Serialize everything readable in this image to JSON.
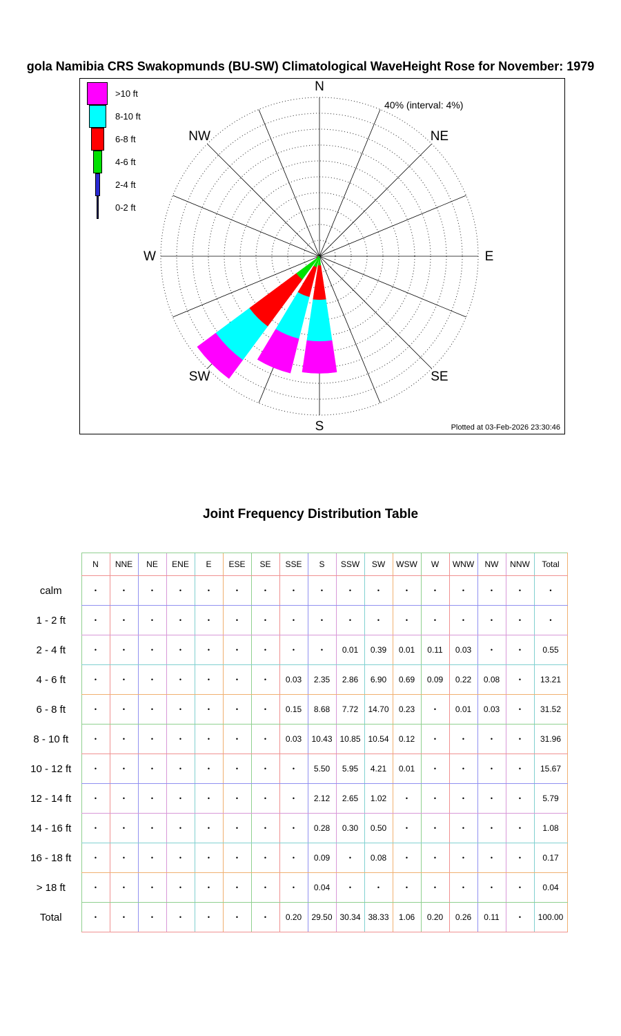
{
  "page": {
    "title": "gola Namibia CRS Swakopmunds (BU-SW) Climatological WaveHeight Rose for November: 1979"
  },
  "rose": {
    "radial_label": "40% (interval: 4%)",
    "plotted_at": "Plotted at 03-Feb-2026 23:30:46",
    "compass_labels": [
      "N",
      "NE",
      "E",
      "SE",
      "S",
      "SW",
      "W",
      "NW"
    ],
    "legend": [
      {
        "label": ">10 ft",
        "color": "#ff00ff",
        "width": 30
      },
      {
        "label": "8-10 ft",
        "color": "#00ffff",
        "width": 25
      },
      {
        "label": "6-8 ft",
        "color": "#ff0000",
        "width": 19
      },
      {
        "label": "4-6 ft",
        "color": "#00e000",
        "width": 13
      },
      {
        "label": "2-4 ft",
        "color": "#2a2ad4",
        "width": 7
      },
      {
        "label": "0-2 ft",
        "color": "#000066",
        "width": 3
      }
    ]
  },
  "chart_data": {
    "type": "wind_rose",
    "title": "Climatological WaveHeight Rose for November: 1979",
    "units": "percent of observations",
    "max_radius_percent": 40,
    "ring_interval_percent": 4,
    "directions": [
      "N",
      "NNE",
      "NE",
      "ENE",
      "E",
      "ESE",
      "SE",
      "SSE",
      "S",
      "SSW",
      "SW",
      "WSW",
      "W",
      "WNW",
      "NW",
      "NNW"
    ],
    "series": [
      {
        "name": "0-2 ft",
        "color": "#000066",
        "values": [
          0,
          0,
          0,
          0,
          0,
          0,
          0,
          0,
          0,
          0,
          0,
          0,
          0,
          0,
          0,
          0
        ]
      },
      {
        "name": "2-4 ft",
        "color": "#2a2ad4",
        "values": [
          0,
          0,
          0,
          0,
          0,
          0,
          0,
          0,
          0,
          0.01,
          0.39,
          0.01,
          0.11,
          0.03,
          0,
          0
        ]
      },
      {
        "name": "4-6 ft",
        "color": "#00e000",
        "values": [
          0,
          0,
          0,
          0,
          0,
          0,
          0,
          0.03,
          2.35,
          2.86,
          6.9,
          0.69,
          0.09,
          0.22,
          0.08,
          0
        ]
      },
      {
        "name": "6-8 ft",
        "color": "#ff0000",
        "values": [
          0,
          0,
          0,
          0,
          0,
          0,
          0,
          0.15,
          8.68,
          7.72,
          14.7,
          0.23,
          0,
          0.01,
          0.03,
          0
        ]
      },
      {
        "name": "8-10 ft",
        "color": "#00ffff",
        "values": [
          0,
          0,
          0,
          0,
          0,
          0,
          0,
          0.03,
          10.43,
          10.85,
          10.54,
          0.12,
          0,
          0,
          0,
          0
        ]
      },
      {
        "name": ">10 ft",
        "color": "#ff00ff",
        "values": [
          0,
          0,
          0,
          0,
          0,
          0,
          0,
          0,
          8.03,
          8.9,
          5.81,
          0.01,
          0,
          0,
          0,
          0
        ]
      }
    ]
  },
  "table": {
    "title": "Joint Frequency Distribution Table",
    "columns": [
      "N",
      "NNE",
      "NE",
      "ENE",
      "E",
      "ESE",
      "SE",
      "SSE",
      "S",
      "SSW",
      "SW",
      "WSW",
      "W",
      "WNW",
      "NW",
      "NNW",
      "Total"
    ],
    "rows": [
      {
        "label": "calm",
        "values": [
          ".",
          ".",
          ".",
          ".",
          ".",
          ".",
          ".",
          ".",
          ".",
          ".",
          ".",
          ".",
          ".",
          ".",
          ".",
          ".",
          "."
        ]
      },
      {
        "label": "1 - 2  ft",
        "values": [
          ".",
          ".",
          ".",
          ".",
          ".",
          ".",
          ".",
          ".",
          ".",
          ".",
          ".",
          ".",
          ".",
          ".",
          ".",
          ".",
          "."
        ]
      },
      {
        "label": "2 - 4  ft",
        "values": [
          ".",
          ".",
          ".",
          ".",
          ".",
          ".",
          ".",
          ".",
          ".",
          "0.01",
          "0.39",
          "0.01",
          "0.11",
          "0.03",
          ".",
          ".",
          "0.55"
        ]
      },
      {
        "label": "4 - 6  ft",
        "values": [
          ".",
          ".",
          ".",
          ".",
          ".",
          ".",
          ".",
          "0.03",
          "2.35",
          "2.86",
          "6.90",
          "0.69",
          "0.09",
          "0.22",
          "0.08",
          ".",
          "13.21"
        ]
      },
      {
        "label": "6 - 8  ft",
        "values": [
          ".",
          ".",
          ".",
          ".",
          ".",
          ".",
          ".",
          "0.15",
          "8.68",
          "7.72",
          "14.70",
          "0.23",
          ".",
          "0.01",
          "0.03",
          ".",
          "31.52"
        ]
      },
      {
        "label": "8 - 10 ft",
        "values": [
          ".",
          ".",
          ".",
          ".",
          ".",
          ".",
          ".",
          "0.03",
          "10.43",
          "10.85",
          "10.54",
          "0.12",
          ".",
          ".",
          ".",
          ".",
          "31.96"
        ]
      },
      {
        "label": "10 - 12 ft",
        "values": [
          ".",
          ".",
          ".",
          ".",
          ".",
          ".",
          ".",
          ".",
          "5.50",
          "5.95",
          "4.21",
          "0.01",
          ".",
          ".",
          ".",
          ".",
          "15.67"
        ]
      },
      {
        "label": "12 - 14 ft",
        "values": [
          ".",
          ".",
          ".",
          ".",
          ".",
          ".",
          ".",
          ".",
          "2.12",
          "2.65",
          "1.02",
          ".",
          ".",
          ".",
          ".",
          ".",
          "5.79"
        ]
      },
      {
        "label": "14 - 16 ft",
        "values": [
          ".",
          ".",
          ".",
          ".",
          ".",
          ".",
          ".",
          ".",
          "0.28",
          "0.30",
          "0.50",
          ".",
          ".",
          ".",
          ".",
          ".",
          "1.08"
        ]
      },
      {
        "label": "16 - 18 ft",
        "values": [
          ".",
          ".",
          ".",
          ".",
          ".",
          ".",
          ".",
          ".",
          "0.09",
          ".",
          "0.08",
          ".",
          ".",
          ".",
          ".",
          ".",
          "0.17"
        ]
      },
      {
        "label": "> 18   ft",
        "values": [
          ".",
          ".",
          ".",
          ".",
          ".",
          ".",
          ".",
          ".",
          "0.04",
          ".",
          ".",
          ".",
          ".",
          ".",
          ".",
          ".",
          "0.04"
        ]
      },
      {
        "label": "Total",
        "values": [
          ".",
          ".",
          ".",
          ".",
          ".",
          ".",
          ".",
          "0.20",
          "29.50",
          "30.34",
          "38.33",
          "1.06",
          "0.20",
          "0.26",
          "0.11",
          ".",
          "100.00"
        ]
      }
    ],
    "grid_colors": [
      "#8fd08f",
      "#f09090",
      "#9090f0",
      "#d898d8",
      "#80d0d0",
      "#f0b070"
    ]
  }
}
